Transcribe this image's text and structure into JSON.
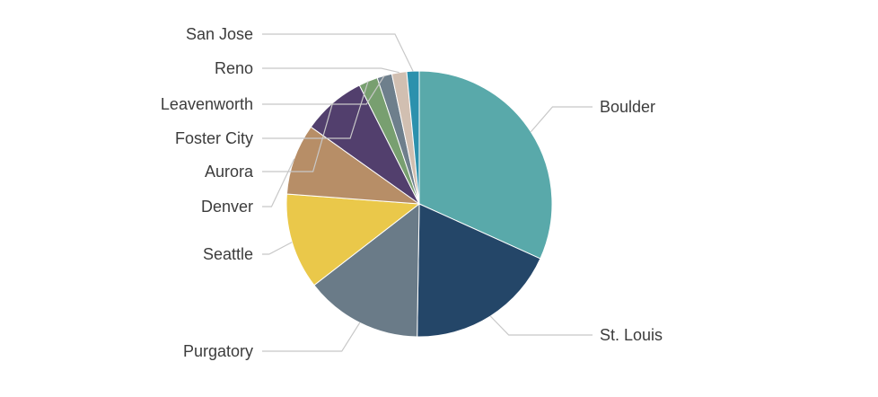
{
  "chart_data": {
    "type": "pie",
    "start_angle_deg": 0,
    "direction": "clockwise",
    "slices": [
      {
        "label": "Boulder",
        "value": 31.6,
        "color": "#59a9aa"
      },
      {
        "label": "St. Louis",
        "value": 18.4,
        "color": "#244668"
      },
      {
        "label": "Purgatory",
        "value": 14.2,
        "color": "#6a7b88"
      },
      {
        "label": "Seattle",
        "value": 11.6,
        "color": "#eac84a"
      },
      {
        "label": "Denver",
        "value": 8.6,
        "color": "#b78e67"
      },
      {
        "label": "Aurora",
        "value": 7.7,
        "color": "#523f6d"
      },
      {
        "label": "Foster City",
        "value": 2.3,
        "color": "#789f70"
      },
      {
        "label": "Leavenworth",
        "value": 1.8,
        "color": "#6e7f8c"
      },
      {
        "label": "Reno",
        "value": 1.8,
        "color": "#d1bfb1"
      },
      {
        "label": "San Jose",
        "value": 1.5,
        "color": "#2c91ad"
      }
    ]
  }
}
